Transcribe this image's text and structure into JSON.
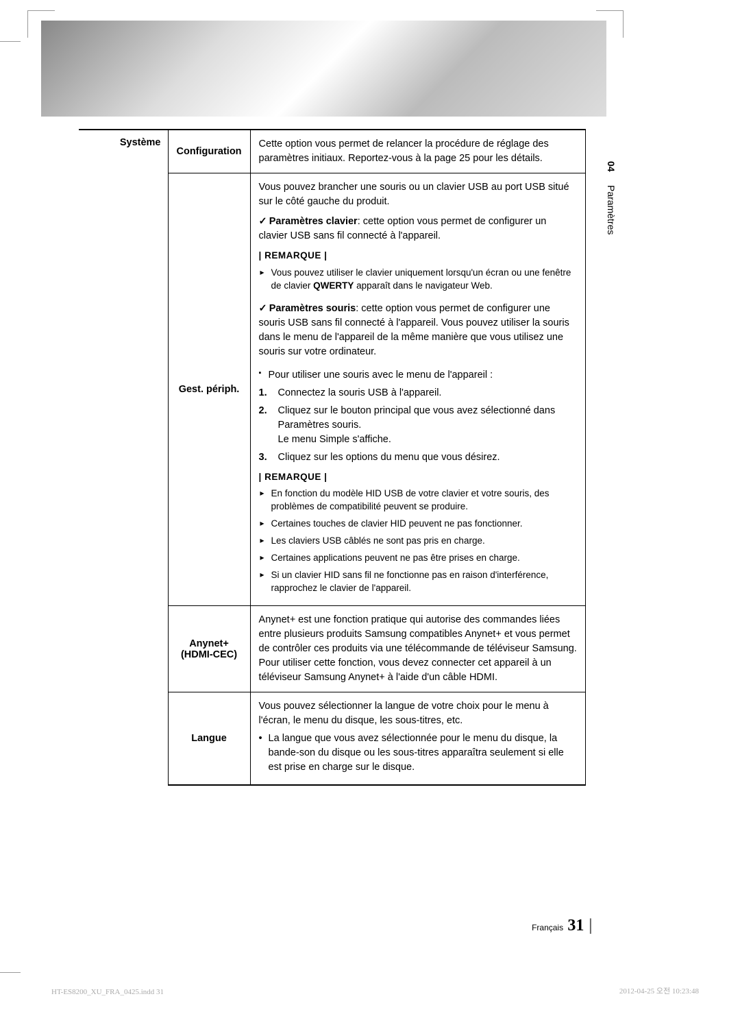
{
  "sidebar": {
    "chapter_num": "04",
    "chapter_label": "Paramètres"
  },
  "category": "Système",
  "rows": {
    "config": {
      "label": "Configuration",
      "desc": "Cette option vous permet de relancer la procédure de réglage des paramètres initiaux. Reportez-vous à la page 25 pour les détails."
    },
    "periph": {
      "label": "Gest. périph.",
      "intro": "Vous pouvez brancher une souris ou un clavier USB au port USB situé sur le côté gauche du produit.",
      "clavier_label": "Paramètres clavier",
      "clavier_desc": ": cette option vous permet de configurer un clavier USB sans fil connecté à l'appareil.",
      "remarque_label": "| REMARQUE |",
      "note1_a": "Vous pouvez utiliser le clavier uniquement lorsqu'un écran ou une fenêtre de clavier ",
      "note1_qwerty": "QWERTY",
      "note1_b": " apparaît dans le navigateur Web.",
      "souris_label": "Paramètres souris",
      "souris_desc": ": cette option vous permet de configurer une souris USB sans fil connecté à l'appareil. Vous pouvez utiliser la souris dans le menu de l'appareil de la même manière que vous utilisez une souris sur votre ordinateur.",
      "use_mouse_title": "Pour utiliser une souris avec le menu de l'appareil :",
      "step1": "Connectez la souris USB à l'appareil.",
      "step2": "Cliquez sur le bouton principal que vous avez sélectionné dans Paramètres souris.\nLe menu Simple s'affiche.",
      "step3": "Cliquez sur les options du menu que vous désirez.",
      "note2": "En fonction du modèle HID USB de votre clavier et votre souris, des problèmes de compatibilité peuvent se produire.",
      "note3": "Certaines touches de clavier HID peuvent ne pas fonctionner.",
      "note4": "Les claviers USB câblés ne sont pas pris en charge.",
      "note5": "Certaines applications peuvent ne pas être prises en charge.",
      "note6": "Si un clavier HID sans fil ne fonctionne pas en raison d'interférence, rapprochez le clavier de l'appareil."
    },
    "anynet": {
      "label": "Anynet+\n(HDMI-CEC)",
      "desc": "Anynet+ est une fonction pratique qui autorise des commandes liées entre plusieurs produits Samsung compatibles Anynet+ et vous permet de contrôler ces produits via une télécommande de téléviseur Samsung.\nPour utiliser cette fonction, vous devez connecter cet appareil à un téléviseur Samsung Anynet+ à l'aide d'un câble HDMI."
    },
    "langue": {
      "label": "Langue",
      "intro": "Vous pouvez sélectionner la langue de votre choix pour le menu à l'écran, le menu du disque, les sous-titres, etc.",
      "sub": "La langue que vous avez sélectionnée pour le menu du disque, la bande-son du disque ou les sous-titres apparaîtra seulement si elle est prise en charge sur le disque."
    }
  },
  "footer": {
    "lang": "Français",
    "page": "31"
  },
  "print": {
    "left": "HT-ES8200_XU_FRA_0425.indd   31",
    "right": "2012-04-25   오전 10:23:48"
  }
}
